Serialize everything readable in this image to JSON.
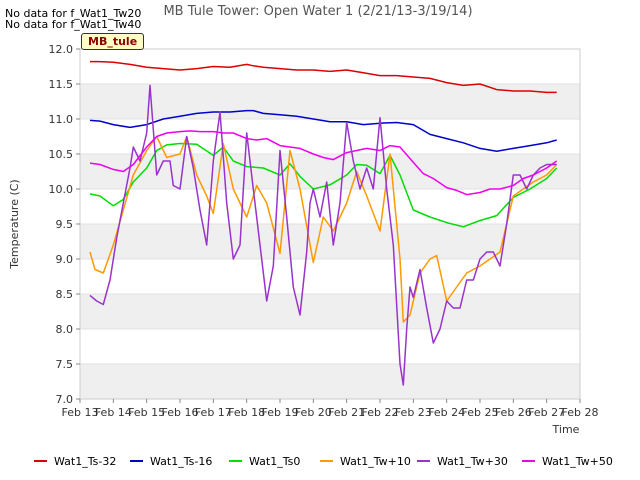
{
  "chart_data": {
    "type": "line",
    "title": "MB Tule Tower: Open Water 1 (2/21/13-3/19/14)",
    "xlabel": "Time",
    "ylabel": "Temperature (C)",
    "ylim": [
      7.0,
      12.0
    ],
    "yticks": [
      "7.0",
      "7.5",
      "8.0",
      "8.5",
      "9.0",
      "9.5",
      "10.0",
      "10.5",
      "11.0",
      "11.5",
      "12.0"
    ],
    "xlim": [
      13,
      28
    ],
    "xticks": [
      "Feb 13",
      "Feb 14",
      "Feb 15",
      "Feb 16",
      "Feb 17",
      "Feb 18",
      "Feb 19",
      "Feb 20",
      "Feb 21",
      "Feb 22",
      "Feb 23",
      "Feb 24",
      "Feb 25",
      "Feb 26",
      "Feb 27",
      "Feb 28"
    ],
    "grid": "horizontal bands",
    "legend_position": "bottom",
    "notes": [
      "No data for f_Wat1_Tw20",
      "No data for f_Wat1_Tw40"
    ],
    "site_label": "MB_tule",
    "series": [
      {
        "name": "Wat1_Ts-32",
        "color": "#dd0000",
        "x": [
          13.3,
          13.6,
          14,
          14.5,
          15,
          15.5,
          16,
          16.5,
          17,
          17.5,
          18,
          18.2,
          18.5,
          19,
          19.5,
          20,
          20.5,
          21,
          21.5,
          22,
          22.5,
          23,
          23.5,
          24,
          24.5,
          25,
          25.5,
          26,
          26.5,
          27,
          27.3
        ],
        "y": [
          11.82,
          11.82,
          11.81,
          11.78,
          11.74,
          11.72,
          11.7,
          11.72,
          11.75,
          11.74,
          11.78,
          11.76,
          11.74,
          11.72,
          11.7,
          11.7,
          11.68,
          11.7,
          11.66,
          11.62,
          11.62,
          11.6,
          11.58,
          11.52,
          11.48,
          11.5,
          11.42,
          11.4,
          11.4,
          11.38,
          11.38
        ]
      },
      {
        "name": "Wat1_Ts-16",
        "color": "#0000cc",
        "x": [
          13.3,
          13.6,
          14,
          14.5,
          15,
          15.5,
          16,
          16.5,
          17,
          17.5,
          18,
          18.2,
          18.5,
          19,
          19.5,
          20,
          20.5,
          21,
          21.5,
          22,
          22.5,
          23,
          23.5,
          24,
          24.5,
          25,
          25.5,
          26,
          26.5,
          27,
          27.3
        ],
        "y": [
          10.98,
          10.97,
          10.92,
          10.88,
          10.92,
          11.0,
          11.04,
          11.08,
          11.1,
          11.1,
          11.12,
          11.12,
          11.08,
          11.06,
          11.04,
          11.0,
          10.96,
          10.96,
          10.92,
          10.94,
          10.95,
          10.92,
          10.78,
          10.72,
          10.66,
          10.58,
          10.54,
          10.58,
          10.62,
          10.66,
          10.7
        ]
      },
      {
        "name": "Wat1_Ts0",
        "color": "#00dd00",
        "x": [
          13.3,
          13.6,
          14,
          14.3,
          14.6,
          15,
          15.3,
          15.6,
          16,
          16.5,
          17,
          17.3,
          17.6,
          18,
          18.5,
          19,
          19.3,
          19.6,
          20,
          20.5,
          21,
          21.3,
          21.6,
          22,
          22.3,
          22.6,
          23,
          23.5,
          24,
          24.5,
          25,
          25.5,
          26,
          26.5,
          27,
          27.3
        ],
        "y": [
          9.93,
          9.9,
          9.76,
          9.85,
          10.1,
          10.3,
          10.55,
          10.63,
          10.65,
          10.64,
          10.48,
          10.6,
          10.4,
          10.32,
          10.3,
          10.2,
          10.36,
          10.18,
          10.0,
          10.06,
          10.2,
          10.35,
          10.34,
          10.22,
          10.48,
          10.2,
          9.7,
          9.6,
          9.52,
          9.46,
          9.55,
          9.62,
          9.88,
          10.0,
          10.15,
          10.3
        ]
      },
      {
        "name": "Wat1_Tw+10",
        "color": "#ff9900",
        "x": [
          13.3,
          13.45,
          13.7,
          14,
          14.3,
          14.6,
          15,
          15.3,
          15.6,
          16,
          16.2,
          16.5,
          16.8,
          17,
          17.3,
          17.6,
          18,
          18.3,
          18.6,
          19,
          19.3,
          19.6,
          20,
          20.3,
          20.6,
          21,
          21.3,
          21.6,
          22,
          22.3,
          22.6,
          22.7,
          22.9,
          23.2,
          23.5,
          23.7,
          24,
          24.3,
          24.6,
          25,
          25.3,
          25.6,
          26,
          26.3,
          26.6,
          27,
          27.3
        ],
        "y": [
          9.1,
          8.85,
          8.8,
          9.2,
          9.7,
          10.2,
          10.55,
          10.75,
          10.45,
          10.5,
          10.75,
          10.2,
          9.9,
          9.65,
          10.65,
          10.0,
          9.6,
          10.05,
          9.8,
          9.08,
          10.55,
          10.0,
          8.95,
          9.6,
          9.4,
          9.8,
          10.25,
          9.9,
          9.4,
          10.5,
          9.0,
          8.1,
          8.2,
          8.8,
          9.0,
          9.05,
          8.4,
          8.6,
          8.8,
          8.9,
          9.0,
          9.1,
          9.9,
          10.0,
          10.1,
          10.2,
          10.35
        ]
      },
      {
        "name": "Wat1_Tw+30",
        "color": "#9933cc",
        "x": [
          13.3,
          13.5,
          13.7,
          13.9,
          14.1,
          14.3,
          14.5,
          14.6,
          14.8,
          15.0,
          15.1,
          15.3,
          15.5,
          15.7,
          15.8,
          16.0,
          16.2,
          16.4,
          16.6,
          16.8,
          17.0,
          17.2,
          17.4,
          17.6,
          17.8,
          18.0,
          18.2,
          18.4,
          18.6,
          18.8,
          19.0,
          19.2,
          19.4,
          19.6,
          19.8,
          19.9,
          20.0,
          20.2,
          20.4,
          20.6,
          20.8,
          21.0,
          21.2,
          21.4,
          21.6,
          21.8,
          22.0,
          22.2,
          22.4,
          22.6,
          22.7,
          22.8,
          22.9,
          23.0,
          23.2,
          23.4,
          23.6,
          23.8,
          24.0,
          24.2,
          24.4,
          24.6,
          24.8,
          25.0,
          25.2,
          25.4,
          25.6,
          25.8,
          26.0,
          26.2,
          26.4,
          26.6,
          26.8,
          27.0,
          27.3
        ],
        "y": [
          8.48,
          8.4,
          8.35,
          8.7,
          9.3,
          9.8,
          10.3,
          10.6,
          10.4,
          10.8,
          11.48,
          10.2,
          10.4,
          10.4,
          10.05,
          10.0,
          10.75,
          10.3,
          9.7,
          9.2,
          10.4,
          11.1,
          9.8,
          9.0,
          9.2,
          10.8,
          10.0,
          9.2,
          8.4,
          8.9,
          10.55,
          9.6,
          8.6,
          8.2,
          9.1,
          9.8,
          10.0,
          9.6,
          10.1,
          9.2,
          9.8,
          10.95,
          10.4,
          10.0,
          10.3,
          10.0,
          11.02,
          10.0,
          9.2,
          7.5,
          7.2,
          8.0,
          8.6,
          8.45,
          8.85,
          8.3,
          7.8,
          8.0,
          8.4,
          8.3,
          8.3,
          8.7,
          8.7,
          9.0,
          9.1,
          9.1,
          8.9,
          9.5,
          10.2,
          10.2,
          10.0,
          10.2,
          10.3,
          10.35,
          10.35
        ]
      },
      {
        "name": "Wat1_Tw+50",
        "color": "#ee00ee",
        "x": [
          13.3,
          13.6,
          14,
          14.3,
          14.6,
          15,
          15.3,
          15.6,
          16,
          16.3,
          16.6,
          17,
          17.3,
          17.6,
          18,
          18.3,
          18.6,
          19,
          19.3,
          19.6,
          20,
          20.3,
          20.6,
          21,
          21.3,
          21.6,
          22,
          22.3,
          22.6,
          23,
          23.3,
          23.6,
          24,
          24.3,
          24.6,
          25,
          25.3,
          25.6,
          26,
          26.3,
          26.6,
          27,
          27.3
        ],
        "y": [
          10.37,
          10.35,
          10.28,
          10.25,
          10.35,
          10.6,
          10.75,
          10.8,
          10.82,
          10.83,
          10.82,
          10.82,
          10.8,
          10.8,
          10.72,
          10.7,
          10.72,
          10.62,
          10.6,
          10.58,
          10.5,
          10.45,
          10.42,
          10.52,
          10.55,
          10.58,
          10.55,
          10.62,
          10.6,
          10.38,
          10.22,
          10.15,
          10.02,
          9.98,
          9.92,
          9.95,
          10.0,
          10.0,
          10.05,
          10.15,
          10.2,
          10.3,
          10.4
        ]
      }
    ]
  }
}
